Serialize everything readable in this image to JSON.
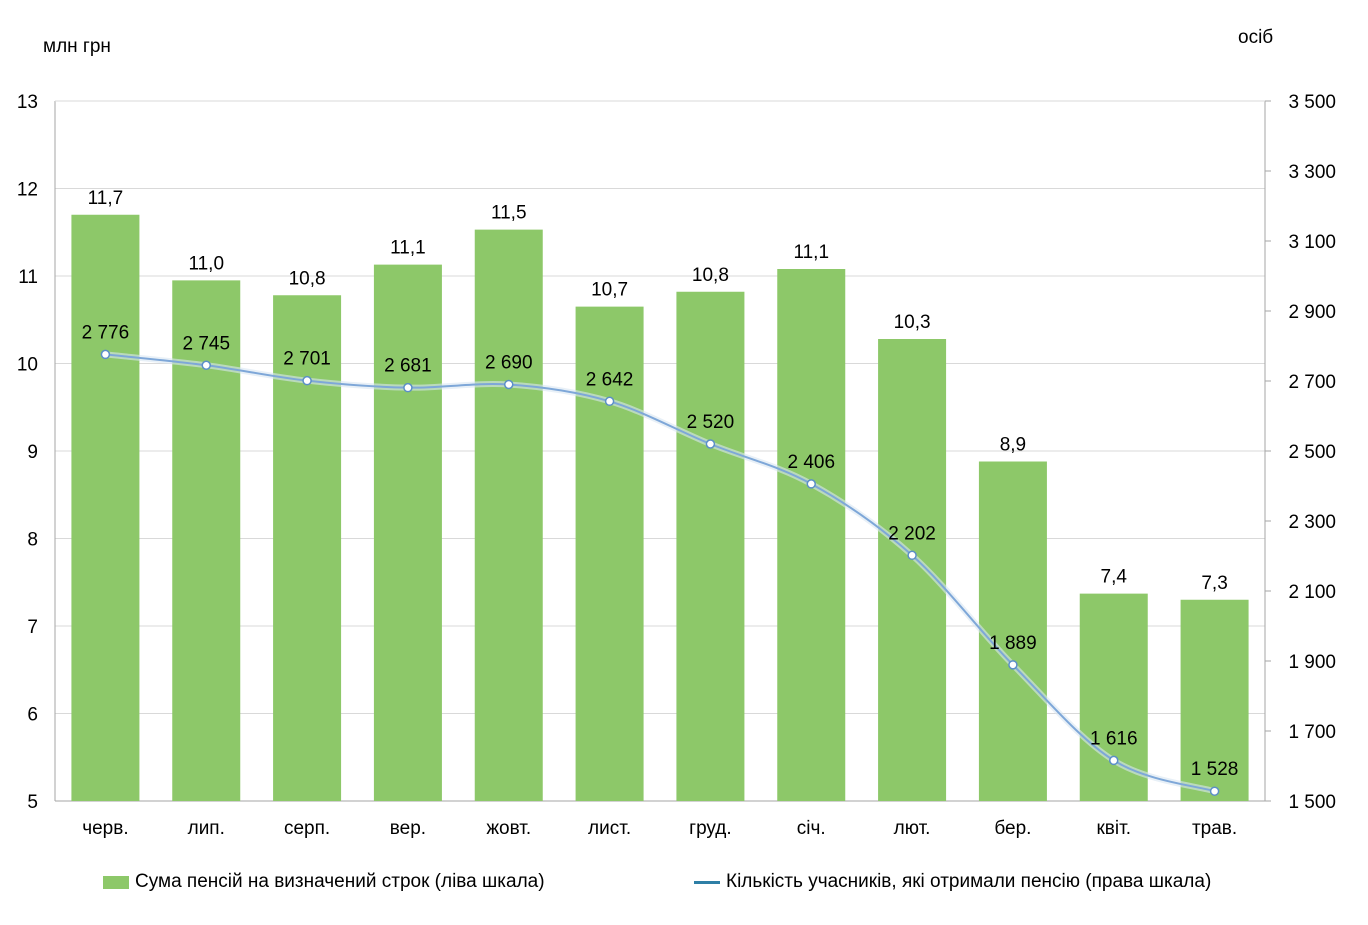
{
  "units": {
    "left": "млн  грн",
    "right": "осіб"
  },
  "legend": {
    "bars": "Сума пенсій на визначений строк (ліва шкала)",
    "line": "Кількість учасників, які отримали пенсію (права шкала)"
  },
  "colors": {
    "bar": "#8dc869",
    "line": "#7ea7d8",
    "marker_stroke": "#5b8fc7",
    "legend_line": "#2e7fa6",
    "grid": "#d9d9d9",
    "axis": "#a6a6a6"
  },
  "chart_data": {
    "type": "bar",
    "categories": [
      "черв.",
      "лип.",
      "серп.",
      "вер.",
      "жовт.",
      "лист.",
      "груд.",
      "січ.",
      "лют.",
      "бер.",
      "квіт.",
      "трав."
    ],
    "series": [
      {
        "name": "Сума пенсій на визначений строк (ліва шкала)",
        "type": "bar",
        "axis": "left",
        "values": [
          11.7,
          10.95,
          10.78,
          11.13,
          11.53,
          10.65,
          10.82,
          11.08,
          10.28,
          8.88,
          7.37,
          7.3
        ],
        "labels": [
          "11,7",
          "11,0",
          "10,8",
          "11,1",
          "11,5",
          "10,7",
          "10,8",
          "11,1",
          "10,3",
          "8,9",
          "7,4",
          "7,3"
        ]
      },
      {
        "name": "Кількість учасників, які отримали пенсію (права шкала)",
        "type": "line",
        "axis": "right",
        "values": [
          2776,
          2745,
          2701,
          2681,
          2690,
          2642,
          2520,
          2406,
          2202,
          1889,
          1616,
          1528
        ],
        "labels": [
          "2 776",
          "2 745",
          "2 701",
          "2 681",
          "2 690",
          "2 642",
          "2 520",
          "2 406",
          "2 202",
          "1 889",
          "1 616",
          "1 528"
        ]
      }
    ],
    "left_axis": {
      "min": 5,
      "max": 13,
      "ticks": [
        "5",
        "6",
        "7",
        "8",
        "9",
        "10",
        "11",
        "12",
        "13"
      ]
    },
    "right_axis": {
      "min": 1500,
      "max": 3500,
      "ticks": [
        "1 500",
        "1 700",
        "1 900",
        "2 100",
        "2 300",
        "2 500",
        "2 700",
        "2 900",
        "3 100",
        "3 300",
        "3 500"
      ]
    },
    "grid": true,
    "legend_position": "bottom"
  }
}
